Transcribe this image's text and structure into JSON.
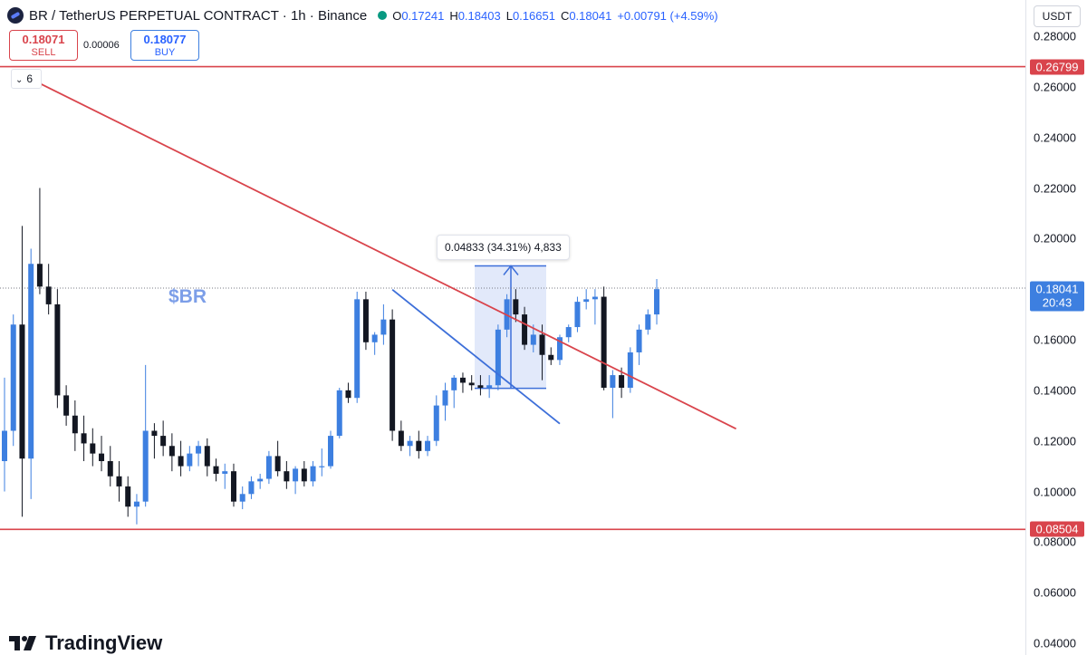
{
  "header": {
    "symbol_title": "BR / TetherUS PERPETUAL CONTRACT · 1h · Binance",
    "ohlc": {
      "o_label": "O",
      "o": "0.17241",
      "h_label": "H",
      "h": "0.18403",
      "l_label": "L",
      "l": "0.16651",
      "c_label": "C",
      "c": "0.18041",
      "change": "+0.00791 (+4.59%)"
    },
    "sell_price": "0.18071",
    "sell_label": "SELL",
    "spread": "0.00006",
    "buy_price": "0.18077",
    "buy_label": "BUY",
    "indicators_count": "6"
  },
  "axis": {
    "currency": "USDT",
    "ticks": [
      "0.28000",
      "0.26000",
      "0.24000",
      "0.22000",
      "0.20000",
      "0.18000",
      "0.16000",
      "0.14000",
      "0.12000",
      "0.10000",
      "0.08000",
      "0.06000",
      "0.04000"
    ],
    "resistance_badge": "0.26799",
    "support_badge": "0.08504",
    "last_price_badge": "0.18041",
    "countdown": "20:43"
  },
  "annotations": {
    "measure_text": "0.04833 (34.31%) 4,833",
    "watermark_text": "$BR"
  },
  "brand": {
    "logo_text": "TradingView"
  },
  "colors": {
    "up": "#3d7fe0",
    "down": "#131722",
    "resistance": "#d9444c",
    "trendline": "#d9444c",
    "blue_trendline": "#3d6fd9",
    "measure_fill": "#d8e2f8"
  },
  "chart_data": {
    "type": "candlestick",
    "title": "BR / TetherUS PERPETUAL CONTRACT · 1h · Binance",
    "ylim": [
      0.04,
      0.28
    ],
    "grid": false,
    "horizontal_lines": [
      0.26799,
      0.08504
    ],
    "last_price": 0.18041,
    "candles": [
      {
        "o": 0.112,
        "h": 0.145,
        "l": 0.1,
        "c": 0.124
      },
      {
        "o": 0.124,
        "h": 0.17,
        "l": 0.118,
        "c": 0.166
      },
      {
        "o": 0.166,
        "h": 0.205,
        "l": 0.09,
        "c": 0.113
      },
      {
        "o": 0.113,
        "h": 0.196,
        "l": 0.097,
        "c": 0.19
      },
      {
        "o": 0.19,
        "h": 0.22,
        "l": 0.178,
        "c": 0.181
      },
      {
        "o": 0.181,
        "h": 0.19,
        "l": 0.17,
        "c": 0.174
      },
      {
        "o": 0.174,
        "h": 0.18,
        "l": 0.133,
        "c": 0.138
      },
      {
        "o": 0.138,
        "h": 0.142,
        "l": 0.126,
        "c": 0.13
      },
      {
        "o": 0.13,
        "h": 0.136,
        "l": 0.116,
        "c": 0.123
      },
      {
        "o": 0.123,
        "h": 0.13,
        "l": 0.112,
        "c": 0.119
      },
      {
        "o": 0.119,
        "h": 0.125,
        "l": 0.11,
        "c": 0.115
      },
      {
        "o": 0.115,
        "h": 0.122,
        "l": 0.108,
        "c": 0.112
      },
      {
        "o": 0.112,
        "h": 0.118,
        "l": 0.102,
        "c": 0.106
      },
      {
        "o": 0.106,
        "h": 0.112,
        "l": 0.096,
        "c": 0.102
      },
      {
        "o": 0.102,
        "h": 0.106,
        "l": 0.09,
        "c": 0.094
      },
      {
        "o": 0.094,
        "h": 0.099,
        "l": 0.087,
        "c": 0.096
      },
      {
        "o": 0.096,
        "h": 0.15,
        "l": 0.094,
        "c": 0.124
      },
      {
        "o": 0.124,
        "h": 0.127,
        "l": 0.113,
        "c": 0.122
      },
      {
        "o": 0.122,
        "h": 0.128,
        "l": 0.114,
        "c": 0.118
      },
      {
        "o": 0.118,
        "h": 0.123,
        "l": 0.108,
        "c": 0.114
      },
      {
        "o": 0.114,
        "h": 0.12,
        "l": 0.106,
        "c": 0.11
      },
      {
        "o": 0.11,
        "h": 0.118,
        "l": 0.108,
        "c": 0.115
      },
      {
        "o": 0.115,
        "h": 0.12,
        "l": 0.11,
        "c": 0.118
      },
      {
        "o": 0.118,
        "h": 0.121,
        "l": 0.106,
        "c": 0.11
      },
      {
        "o": 0.11,
        "h": 0.113,
        "l": 0.104,
        "c": 0.107
      },
      {
        "o": 0.107,
        "h": 0.111,
        "l": 0.101,
        "c": 0.108
      },
      {
        "o": 0.108,
        "h": 0.111,
        "l": 0.094,
        "c": 0.096
      },
      {
        "o": 0.096,
        "h": 0.102,
        "l": 0.093,
        "c": 0.099
      },
      {
        "o": 0.099,
        "h": 0.106,
        "l": 0.097,
        "c": 0.104
      },
      {
        "o": 0.104,
        "h": 0.107,
        "l": 0.101,
        "c": 0.105
      },
      {
        "o": 0.105,
        "h": 0.116,
        "l": 0.103,
        "c": 0.114
      },
      {
        "o": 0.114,
        "h": 0.12,
        "l": 0.106,
        "c": 0.108
      },
      {
        "o": 0.108,
        "h": 0.112,
        "l": 0.101,
        "c": 0.104
      },
      {
        "o": 0.104,
        "h": 0.11,
        "l": 0.099,
        "c": 0.109
      },
      {
        "o": 0.109,
        "h": 0.112,
        "l": 0.102,
        "c": 0.104
      },
      {
        "o": 0.104,
        "h": 0.112,
        "l": 0.102,
        "c": 0.11
      },
      {
        "o": 0.11,
        "h": 0.117,
        "l": 0.106,
        "c": 0.11
      },
      {
        "o": 0.11,
        "h": 0.124,
        "l": 0.109,
        "c": 0.122
      },
      {
        "o": 0.122,
        "h": 0.141,
        "l": 0.121,
        "c": 0.14
      },
      {
        "o": 0.14,
        "h": 0.143,
        "l": 0.135,
        "c": 0.137
      },
      {
        "o": 0.137,
        "h": 0.179,
        "l": 0.135,
        "c": 0.176
      },
      {
        "o": 0.176,
        "h": 0.179,
        "l": 0.156,
        "c": 0.159
      },
      {
        "o": 0.159,
        "h": 0.163,
        "l": 0.154,
        "c": 0.162
      },
      {
        "o": 0.162,
        "h": 0.174,
        "l": 0.158,
        "c": 0.168
      },
      {
        "o": 0.168,
        "h": 0.172,
        "l": 0.12,
        "c": 0.124
      },
      {
        "o": 0.124,
        "h": 0.128,
        "l": 0.116,
        "c": 0.118
      },
      {
        "o": 0.118,
        "h": 0.122,
        "l": 0.114,
        "c": 0.12
      },
      {
        "o": 0.12,
        "h": 0.124,
        "l": 0.113,
        "c": 0.116
      },
      {
        "o": 0.116,
        "h": 0.122,
        "l": 0.114,
        "c": 0.12
      },
      {
        "o": 0.12,
        "h": 0.138,
        "l": 0.118,
        "c": 0.134
      },
      {
        "o": 0.134,
        "h": 0.143,
        "l": 0.128,
        "c": 0.14
      },
      {
        "o": 0.14,
        "h": 0.146,
        "l": 0.133,
        "c": 0.145
      },
      {
        "o": 0.145,
        "h": 0.147,
        "l": 0.139,
        "c": 0.143
      },
      {
        "o": 0.143,
        "h": 0.146,
        "l": 0.14,
        "c": 0.142
      },
      {
        "o": 0.142,
        "h": 0.146,
        "l": 0.138,
        "c": 0.141
      },
      {
        "o": 0.141,
        "h": 0.146,
        "l": 0.137,
        "c": 0.142
      },
      {
        "o": 0.142,
        "h": 0.166,
        "l": 0.14,
        "c": 0.164
      },
      {
        "o": 0.164,
        "h": 0.178,
        "l": 0.161,
        "c": 0.176
      },
      {
        "o": 0.176,
        "h": 0.18,
        "l": 0.167,
        "c": 0.17
      },
      {
        "o": 0.17,
        "h": 0.173,
        "l": 0.156,
        "c": 0.158
      },
      {
        "o": 0.158,
        "h": 0.166,
        "l": 0.155,
        "c": 0.162
      },
      {
        "o": 0.162,
        "h": 0.166,
        "l": 0.144,
        "c": 0.154
      },
      {
        "o": 0.154,
        "h": 0.157,
        "l": 0.15,
        "c": 0.152
      },
      {
        "o": 0.152,
        "h": 0.162,
        "l": 0.15,
        "c": 0.161
      },
      {
        "o": 0.161,
        "h": 0.166,
        "l": 0.159,
        "c": 0.165
      },
      {
        "o": 0.165,
        "h": 0.177,
        "l": 0.163,
        "c": 0.175
      },
      {
        "o": 0.175,
        "h": 0.18,
        "l": 0.172,
        "c": 0.176
      },
      {
        "o": 0.176,
        "h": 0.18,
        "l": 0.166,
        "c": 0.177
      },
      {
        "o": 0.177,
        "h": 0.181,
        "l": 0.14,
        "c": 0.141
      },
      {
        "o": 0.141,
        "h": 0.148,
        "l": 0.129,
        "c": 0.146
      },
      {
        "o": 0.146,
        "h": 0.149,
        "l": 0.137,
        "c": 0.141
      },
      {
        "o": 0.141,
        "h": 0.157,
        "l": 0.139,
        "c": 0.155
      },
      {
        "o": 0.155,
        "h": 0.166,
        "l": 0.15,
        "c": 0.164
      },
      {
        "o": 0.164,
        "h": 0.172,
        "l": 0.162,
        "c": 0.17
      },
      {
        "o": 0.17,
        "h": 0.184,
        "l": 0.166,
        "c": 0.18
      }
    ],
    "trendlines": [
      {
        "name": "descending-resistance",
        "x0": 2,
        "y0": 0.2648,
        "x1": 83,
        "y1": 0.1248
      },
      {
        "name": "blue-wedge",
        "x0": 44,
        "y0": 0.1798,
        "x1": 63,
        "y1": 0.1268
      }
    ],
    "measure": {
      "from_price": 0.1408,
      "to_price": 0.1892,
      "change": "0.04833 (34.31%) 4,833"
    }
  }
}
